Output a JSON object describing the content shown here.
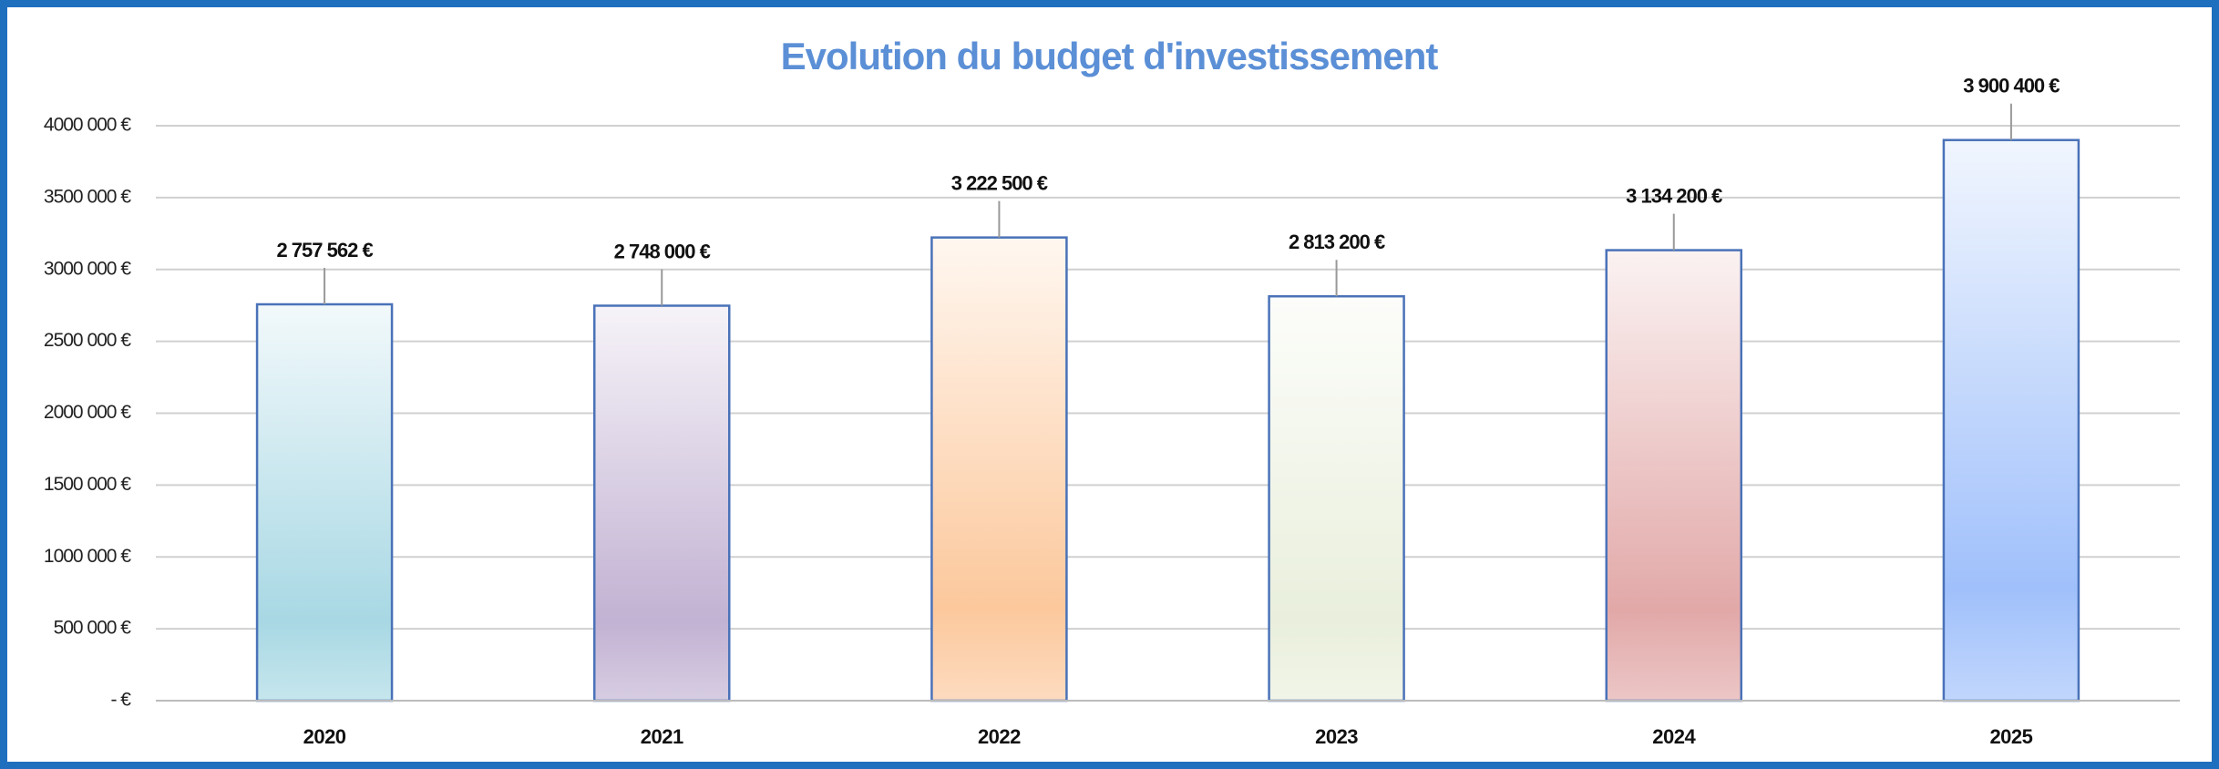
{
  "chart_data": {
    "type": "bar",
    "title": "Evolution  du budget d'investissement",
    "categories": [
      "2020",
      "2021",
      "2022",
      "2023",
      "2024",
      "2025"
    ],
    "values": [
      2757562,
      2748000,
      3222500,
      2813200,
      3134200,
      3900400
    ],
    "value_labels": [
      "2 757 562 €",
      "2 748 000 €",
      "3 222 500 €",
      "2 813 200 €",
      "3 134 200 €",
      "3 900 400 €"
    ],
    "colors": [
      "#a8d8e4",
      "#c2b2d3",
      "#fcc89c",
      "#e9efdc",
      "#e2a8a8",
      "#a0c0fb"
    ],
    "ylim": [
      0,
      4000000
    ],
    "yticks": [
      {
        "value": 0,
        "label": "-  €"
      },
      {
        "value": 500000,
        "label": "500 000 €"
      },
      {
        "value": 1000000,
        "label": "1000 000 €"
      },
      {
        "value": 1500000,
        "label": "1500 000 €"
      },
      {
        "value": 2000000,
        "label": "2000 000 €"
      },
      {
        "value": 2500000,
        "label": "2500 000 €"
      },
      {
        "value": 3000000,
        "label": "3000 000 €"
      },
      {
        "value": 3500000,
        "label": "3500 000 €"
      },
      {
        "value": 4000000,
        "label": "4000 000 €"
      }
    ],
    "grid": true
  }
}
